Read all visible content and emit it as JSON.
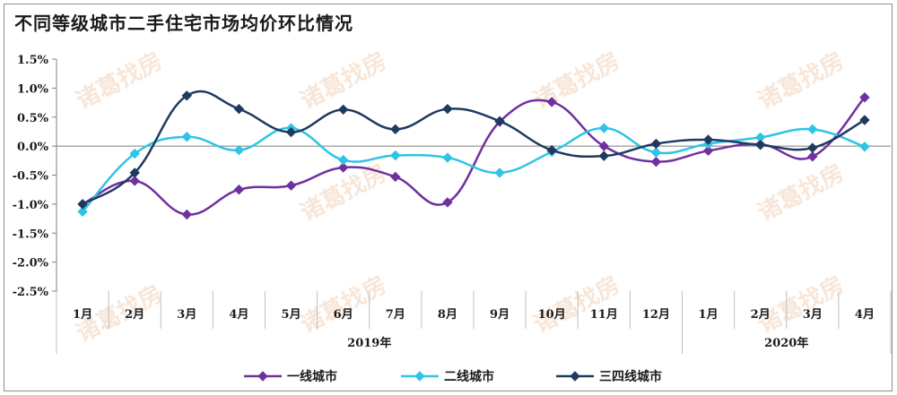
{
  "chart_data": {
    "type": "line",
    "title": "不同等级城市二手住宅市场均价环比情况",
    "watermark": "诸葛找房",
    "categories": [
      "1月",
      "2月",
      "3月",
      "4月",
      "5月",
      "6月",
      "7月",
      "8月",
      "9月",
      "10月",
      "11月",
      "12月",
      "1月",
      "2月",
      "3月",
      "4月"
    ],
    "year_groups": [
      {
        "label": "2019年",
        "count": 12
      },
      {
        "label": "2020年",
        "count": 4
      }
    ],
    "ylim": [
      -2.5,
      1.5
    ],
    "yticks": [
      "1.5%",
      "1.0%",
      "0.5%",
      "0.0%",
      "-0.5%",
      "-1.0%",
      "-1.5%",
      "-2.0%",
      "-2.5%"
    ],
    "legend_position": "bottom",
    "grid": false,
    "series": [
      {
        "name": "一线城市",
        "color": "#7030a0",
        "marker": "diamond",
        "values": [
          -1.0,
          -0.6,
          -1.18,
          -0.75,
          -0.68,
          -0.37,
          -0.53,
          -0.97,
          0.42,
          0.76,
          0.0,
          -0.27,
          -0.08,
          0.03,
          -0.18,
          0.84
        ]
      },
      {
        "name": "二线城市",
        "color": "#2ec4e6",
        "marker": "diamond",
        "values": [
          -1.13,
          -0.13,
          0.16,
          -0.07,
          0.31,
          -0.24,
          -0.16,
          -0.2,
          -0.46,
          -0.1,
          0.31,
          -0.11,
          0.04,
          0.15,
          0.29,
          -0.01
        ]
      },
      {
        "name": "三四线城市",
        "color": "#1f3a5f",
        "marker": "diamond",
        "values": [
          -1.0,
          -0.46,
          0.87,
          0.64,
          0.24,
          0.63,
          0.29,
          0.64,
          0.43,
          -0.07,
          -0.17,
          0.04,
          0.11,
          0.02,
          -0.03,
          0.45
        ]
      }
    ]
  }
}
